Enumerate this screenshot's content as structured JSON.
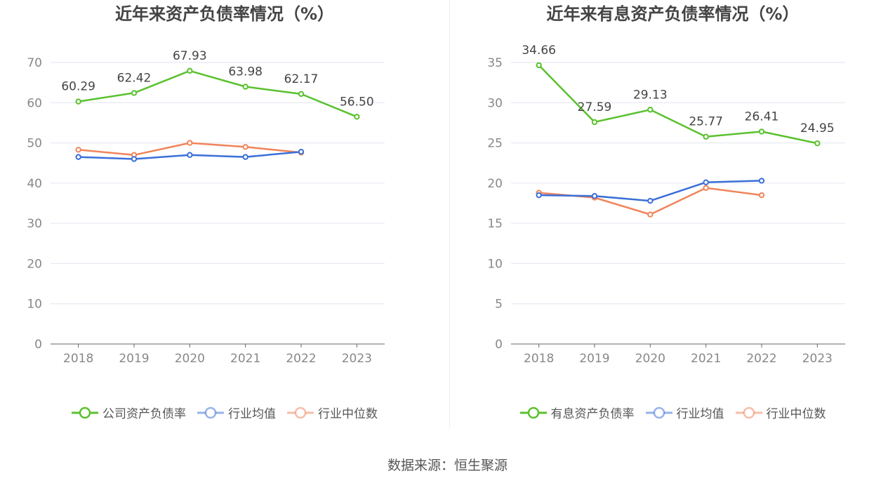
{
  "chart_data": [
    {
      "type": "line",
      "title": "近年来资产负债率情况（%）",
      "categories": [
        "2018",
        "2019",
        "2020",
        "2021",
        "2022",
        "2023"
      ],
      "ylim": [
        0,
        70
      ],
      "yticks": [
        0,
        10,
        20,
        30,
        40,
        50,
        60,
        70
      ],
      "grid": true,
      "legend_position": "bottom",
      "series": [
        {
          "name": "公司资产负债率",
          "color": "#5ac12e",
          "values": [
            60.29,
            62.42,
            67.93,
            63.98,
            62.17,
            56.5
          ],
          "labels": [
            "60.29",
            "62.42",
            "67.93",
            "63.98",
            "62.17",
            "56.50"
          ]
        },
        {
          "name": "行业均值",
          "color": "#3a6fd8",
          "values": [
            46.5,
            46.0,
            47.0,
            46.5,
            47.8,
            null
          ]
        },
        {
          "name": "行业中位数",
          "color": "#f0845a",
          "values": [
            48.3,
            47.0,
            50.0,
            49.0,
            47.6,
            null
          ]
        }
      ]
    },
    {
      "type": "line",
      "title": "近年来有息资产负债率情况（%）",
      "categories": [
        "2018",
        "2019",
        "2020",
        "2021",
        "2022",
        "2023"
      ],
      "ylim": [
        0,
        35
      ],
      "yticks": [
        0,
        5,
        10,
        15,
        20,
        25,
        30,
        35
      ],
      "grid": true,
      "legend_position": "bottom",
      "series": [
        {
          "name": "有息资产负债率",
          "color": "#5ac12e",
          "values": [
            34.66,
            27.59,
            29.13,
            25.77,
            26.41,
            24.95
          ],
          "labels": [
            "34.66",
            "27.59",
            "29.13",
            "25.77",
            "26.41",
            "24.95"
          ]
        },
        {
          "name": "行业均值",
          "color": "#3a6fd8",
          "values": [
            18.5,
            18.4,
            17.8,
            20.1,
            20.3,
            null
          ]
        },
        {
          "name": "行业中位数",
          "color": "#f0845a",
          "values": [
            18.8,
            18.2,
            16.1,
            19.4,
            18.5,
            null
          ]
        }
      ]
    }
  ],
  "footer": "数据来源：恒生聚源"
}
